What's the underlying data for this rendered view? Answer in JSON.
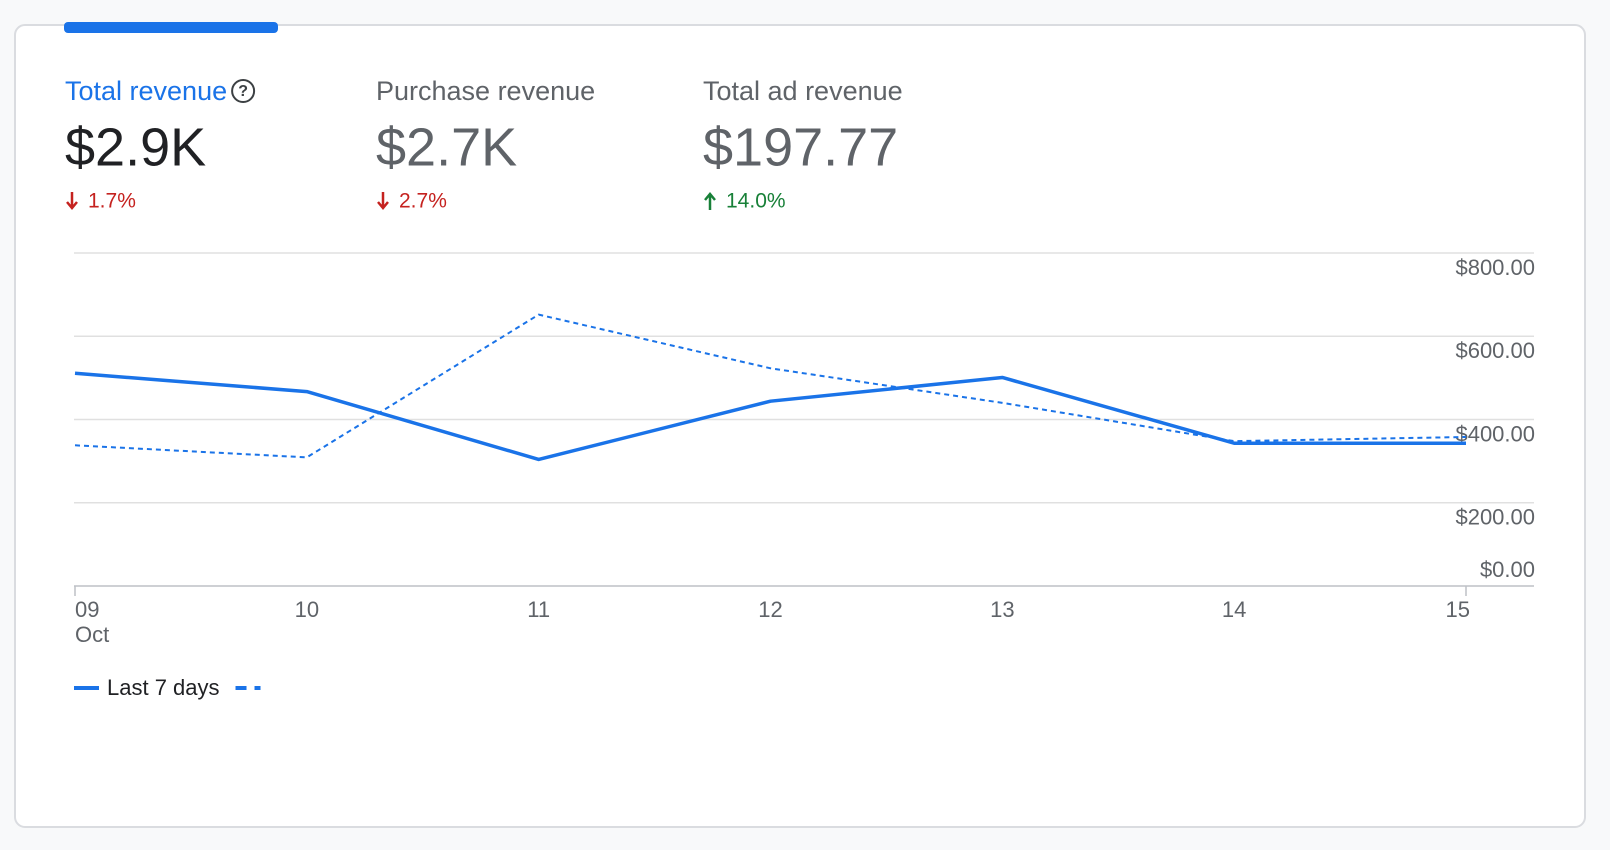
{
  "metrics": [
    {
      "title": "Total revenue",
      "value": "$2.9K",
      "change": "1.7%",
      "direction": "down",
      "selected": true
    },
    {
      "title": "Purchase revenue",
      "value": "$2.7K",
      "change": "2.7%",
      "direction": "down",
      "selected": false
    },
    {
      "title": "Total ad revenue",
      "value": "$197.77",
      "change": "14.0%",
      "direction": "up",
      "selected": false
    }
  ],
  "chart_data": {
    "type": "line",
    "categories": [
      "09",
      "10",
      "11",
      "12",
      "13",
      "14",
      "15"
    ],
    "month": "Oct",
    "series": [
      {
        "name": "Last 7 days",
        "color": "#1a73e8",
        "dashed": false,
        "values": [
          511,
          467,
          304,
          444,
          501,
          343,
          343
        ]
      },
      {
        "color": "#1a73e8",
        "dashed": true,
        "values": [
          338,
          309,
          652,
          523,
          440,
          348,
          358
        ]
      }
    ],
    "ylim": [
      0,
      800
    ],
    "yticks": [
      {
        "value": 0,
        "label": "$0.00"
      },
      {
        "value": 200,
        "label": "$200.00"
      },
      {
        "value": 400,
        "label": "$400.00"
      },
      {
        "value": 600,
        "label": "$600.00"
      },
      {
        "value": 800,
        "label": "$800.00"
      }
    ],
    "grid": true
  }
}
